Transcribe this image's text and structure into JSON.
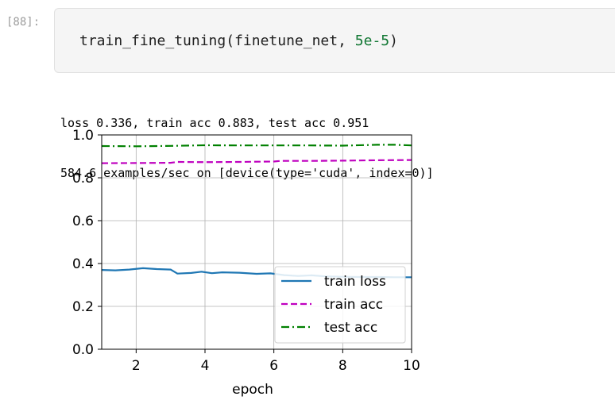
{
  "cell": {
    "prompt": "[88]:",
    "code": {
      "func": "train_fine_tuning(finetune_net, ",
      "arg": "5e-5",
      "close": ")"
    }
  },
  "output": {
    "line1": "loss 0.336, train acc 0.883, test acc 0.951",
    "line2": "584.6 examples/sec on [device(type='cuda', index=0)]"
  },
  "chart_data": {
    "type": "line",
    "xlabel": "epoch",
    "ylabel": "",
    "xlim": [
      1,
      10
    ],
    "ylim": [
      0.0,
      1.0
    ],
    "xticks": [
      "2",
      "4",
      "6",
      "8",
      "10"
    ],
    "yticks": [
      "0.0",
      "0.2",
      "0.4",
      "0.6",
      "0.8",
      "1.0"
    ],
    "grid": true,
    "legend_position": "lower-right",
    "series": [
      {
        "name": "train loss",
        "color": "#1f77b4",
        "style": "solid",
        "x": [
          1,
          1.4,
          1.8,
          2.2,
          2.6,
          3.0,
          3.2,
          3.6,
          3.9,
          4.2,
          4.5,
          5.0,
          5.5,
          5.9,
          6.3,
          6.7,
          7.1,
          7.5,
          8.0,
          8.5,
          9.0,
          9.5,
          10
        ],
        "y": [
          0.37,
          0.368,
          0.372,
          0.378,
          0.374,
          0.372,
          0.353,
          0.356,
          0.362,
          0.355,
          0.359,
          0.357,
          0.352,
          0.354,
          0.346,
          0.342,
          0.345,
          0.34,
          0.338,
          0.337,
          0.337,
          0.336,
          0.336
        ]
      },
      {
        "name": "train acc",
        "color": "#bf00bf",
        "style": "dashed",
        "x": [
          1,
          2,
          3,
          3.2,
          4,
          5,
          6,
          6.2,
          7,
          8,
          9,
          10
        ],
        "y": [
          0.868,
          0.869,
          0.87,
          0.874,
          0.873,
          0.874,
          0.876,
          0.879,
          0.879,
          0.88,
          0.882,
          0.883
        ]
      },
      {
        "name": "test acc",
        "color": "#008000",
        "style": "dashdot",
        "x": [
          1,
          2,
          3,
          4,
          5,
          6,
          7,
          8,
          9,
          9.5,
          10
        ],
        "y": [
          0.948,
          0.947,
          0.949,
          0.952,
          0.951,
          0.951,
          0.951,
          0.95,
          0.954,
          0.954,
          0.951
        ]
      }
    ]
  }
}
